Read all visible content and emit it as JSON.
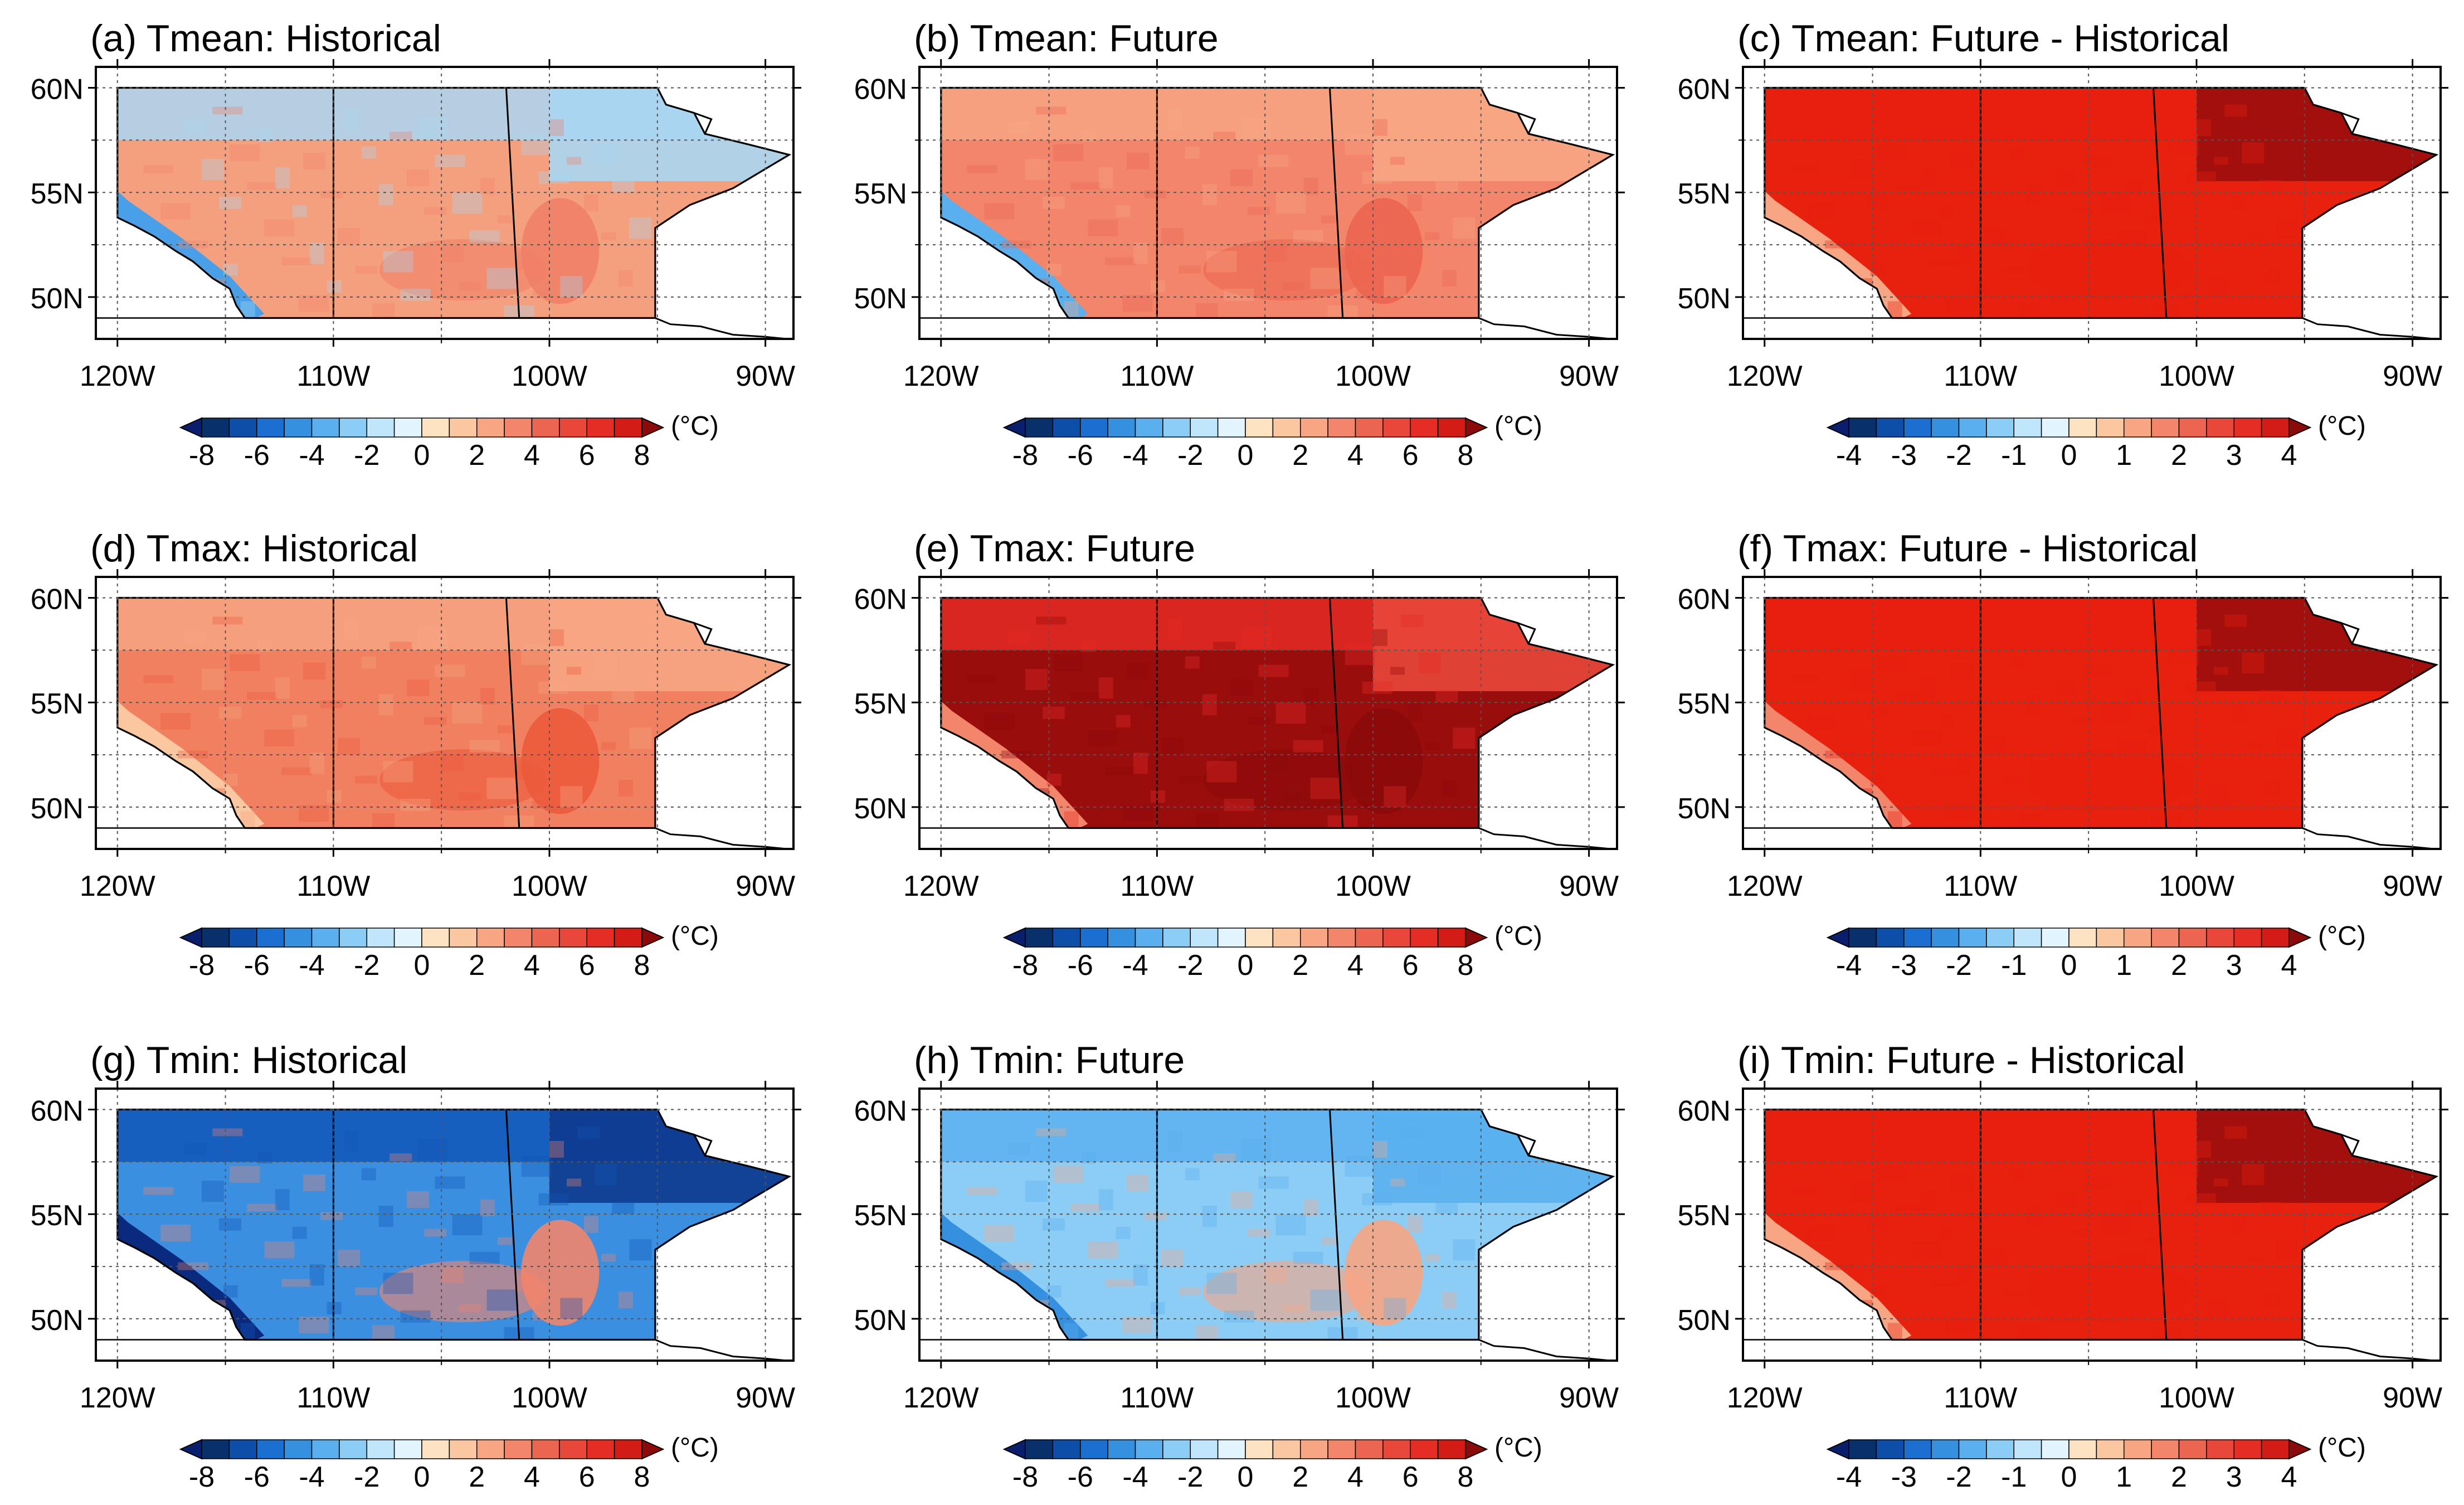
{
  "figure": {
    "description_units": "(°C)",
    "lat_ticks": [
      "60N",
      "55N",
      "50N"
    ],
    "lon_ticks": [
      "120W",
      "110W",
      "100W",
      "90W"
    ],
    "scale_abs": {
      "labels": [
        "-8",
        "-6",
        "-4",
        "-2",
        "0",
        "2",
        "4",
        "6",
        "8"
      ],
      "unit": "(°C)"
    },
    "scale_diff": {
      "labels": [
        "-4",
        "-3",
        "-2",
        "-1",
        "0",
        "1",
        "2",
        "3",
        "4"
      ],
      "unit": "(°C)"
    },
    "palette": {
      "min_arrow": "#0a1e6e",
      "bins": [
        "#08306b",
        "#0d4fa8",
        "#1b6fd0",
        "#3690e0",
        "#5ab0ee",
        "#8ccdf6",
        "#bfe6fb",
        "#e2f4fd",
        "#fde3c2",
        "#fbc7a0",
        "#f7a583",
        "#f3856a",
        "#ec6550",
        "#e8473a",
        "#e52c25",
        "#d41c16"
      ],
      "max_arrow": "#8c0a0a"
    },
    "colors": {
      "outside": "#ffffff",
      "frame": "#000000",
      "grid": "#555555"
    }
  },
  "panels": [
    {
      "title": "(a) Tmean: Historical",
      "scale": "abs",
      "map_style": {
        "base": "#f4a07e",
        "north": "#a9d6f2",
        "west_coast": "#4aa0e8",
        "east": "#a9d6f2",
        "hot_spot": "#f08066"
      }
    },
    {
      "title": "(b) Tmean: Future",
      "scale": "abs",
      "map_style": {
        "base": "#f3856a",
        "north": "#f7a583",
        "west_coast": "#5ab0ee",
        "east": "#f7a583",
        "hot_spot": "#ec6550"
      }
    },
    {
      "title": "(c) Tmean: Future - Historical",
      "scale": "diff",
      "map_style": {
        "base": "#e8200e",
        "north": "#e8200e",
        "west_coast": "#f7a583",
        "east": "#9a0d0d",
        "hot_spot": "#e8200e"
      }
    },
    {
      "title": "(d) Tmax: Historical",
      "scale": "abs",
      "map_style": {
        "base": "#f08060",
        "north": "#f7a583",
        "west_coast": "#fbc7a0",
        "east": "#f7a583",
        "hot_spot": "#ec5a3c"
      }
    },
    {
      "title": "(e) Tmax: Future",
      "scale": "abs",
      "map_style": {
        "base": "#9a0d0d",
        "north": "#e52c25",
        "west_coast": "#f3856a",
        "east": "#e8473a",
        "hot_spot": "#8c0a0a"
      }
    },
    {
      "title": "(f) Tmax: Future - Historical",
      "scale": "diff",
      "map_style": {
        "base": "#e8200e",
        "north": "#e8200e",
        "west_coast": "#f3856a",
        "east": "#9a0d0d",
        "hot_spot": "#e8200e"
      }
    },
    {
      "title": "(g) Tmin: Historical",
      "scale": "abs",
      "map_style": {
        "base": "#3a8fe0",
        "north": "#1257b8",
        "west_coast": "#0a2a80",
        "east": "#0d3a8e",
        "hot_spot": "#f3856a"
      }
    },
    {
      "title": "(h) Tmin: Future",
      "scale": "abs",
      "map_style": {
        "base": "#8ccdf6",
        "north": "#5ab0ee",
        "west_coast": "#3690e0",
        "east": "#5ab0ee",
        "hot_spot": "#f7a583"
      }
    },
    {
      "title": "(i) Tmin: Future - Historical",
      "scale": "diff",
      "map_style": {
        "base": "#e8200e",
        "north": "#e8200e",
        "west_coast": "#f7a583",
        "east": "#9a0d0d",
        "hot_spot": "#e8200e"
      }
    }
  ]
}
